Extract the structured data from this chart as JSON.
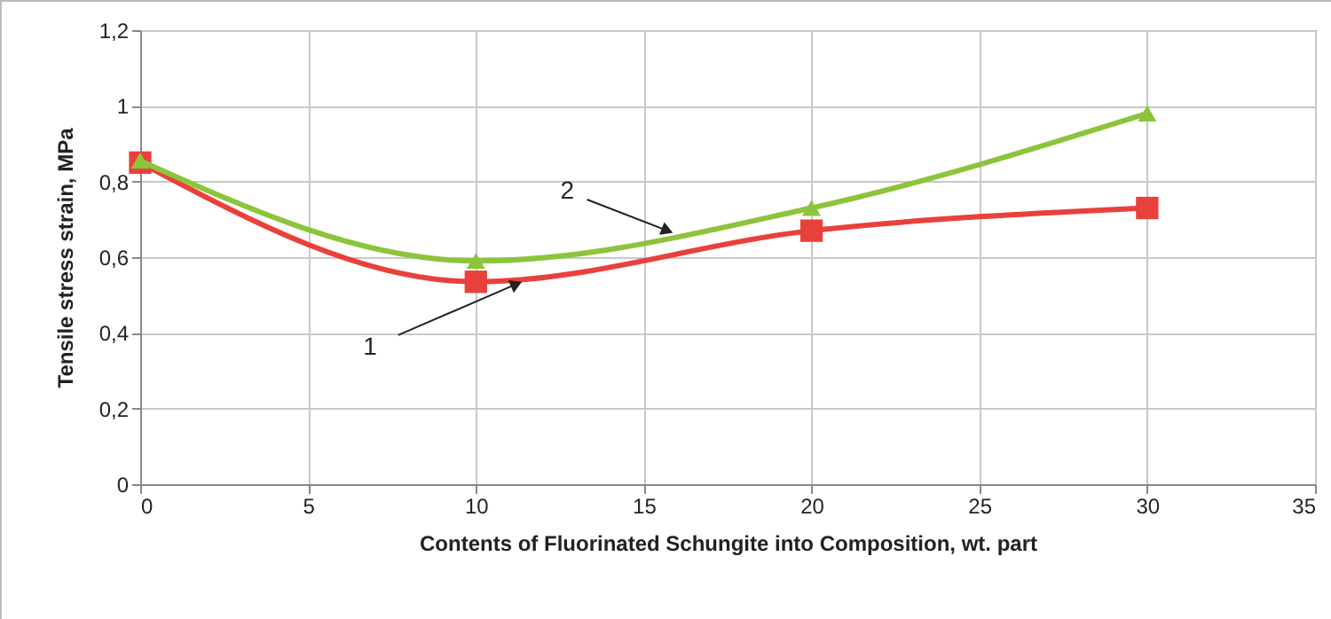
{
  "chart_data": {
    "type": "line",
    "xlabel": "Contents of Fluorinated Schungite into Composition, wt. part",
    "ylabel": "Tensile stress strain, MPa",
    "x": [
      0,
      10,
      20,
      30
    ],
    "series": [
      {
        "color": "#e8413c",
        "marker": "square",
        "values": [
          0.85,
          0.535,
          0.67,
          0.73
        ]
      },
      {
        "color": "#8cc43c",
        "marker": "triangle",
        "values": [
          0.855,
          0.59,
          0.73,
          0.98
        ]
      }
    ],
    "xlim": [
      0,
      35
    ],
    "xticks": [
      0,
      5,
      10,
      15,
      20,
      25,
      30,
      35
    ],
    "ylim": [
      0,
      1.2
    ],
    "yticks": [
      0,
      {
        "value": 0.2,
        "label": "0,2"
      },
      {
        "value": 0.4,
        "label": "0,4"
      },
      {
        "value": 0.6,
        "label": "0,6"
      },
      {
        "value": 0.8,
        "label": "0,8"
      },
      1,
      {
        "value": 1.2,
        "label": "1,2"
      }
    ],
    "grid": true,
    "annotations": [
      {
        "text": "1",
        "x": 11.5,
        "y": 0.54
      },
      {
        "text": "2",
        "x": 16,
        "y": 0.66
      }
    ]
  }
}
